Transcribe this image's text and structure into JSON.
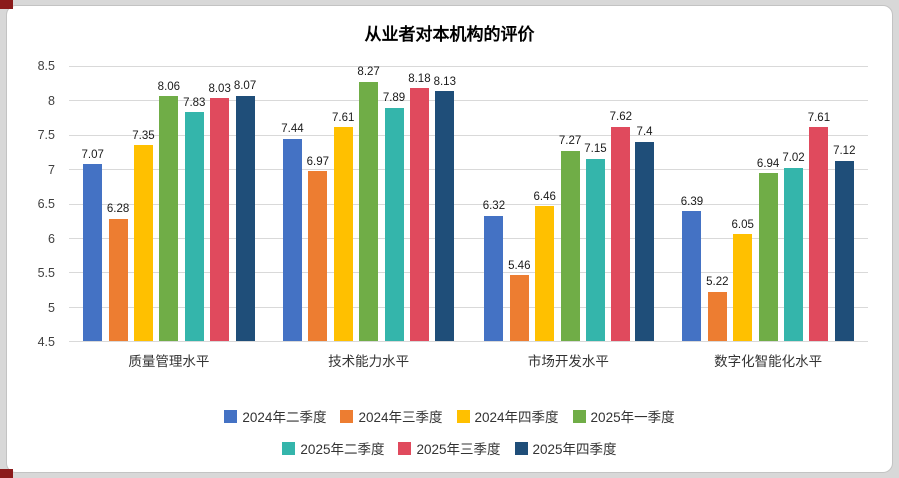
{
  "page": {
    "background_color": "#d8d8d8",
    "panel_color": "#ffffff",
    "corner_mark_color": "#8b1b1b"
  },
  "chart_data": {
    "type": "bar",
    "title": "从业者对本机构的评价",
    "categories": [
      "质量管理水平",
      "技术能力水平",
      "市场开发水平",
      "数字化智能化水平"
    ],
    "series": [
      {
        "name": "2024年二季度",
        "color": "#4472C4",
        "values": [
          7.07,
          7.44,
          6.32,
          6.39
        ]
      },
      {
        "name": "2024年三季度",
        "color": "#ED7D31",
        "values": [
          6.28,
          6.97,
          5.46,
          5.22
        ]
      },
      {
        "name": "2024年四季度",
        "color": "#FFC000",
        "values": [
          7.35,
          7.61,
          6.46,
          6.05
        ]
      },
      {
        "name": "2025年一季度",
        "color": "#70AD47",
        "values": [
          8.06,
          8.27,
          7.27,
          6.94
        ]
      },
      {
        "name": "2025年二季度",
        "color": "#34B5AB",
        "values": [
          7.83,
          7.89,
          7.15,
          7.02
        ]
      },
      {
        "name": "2025年三季度",
        "color": "#E04A5D",
        "values": [
          8.03,
          8.18,
          7.62,
          7.61
        ]
      },
      {
        "name": "2025年四季度",
        "color": "#1F4E79",
        "values": [
          8.07,
          8.13,
          7.4,
          7.12
        ]
      }
    ],
    "ylim": [
      4.5,
      8.5
    ],
    "yticks": [
      "8.5",
      "8",
      "7.5",
      "7",
      "6.5",
      "6",
      "5.5",
      "5",
      "4.5"
    ],
    "grid": true,
    "legend_position": "bottom",
    "legend_rows": [
      4,
      3
    ]
  }
}
